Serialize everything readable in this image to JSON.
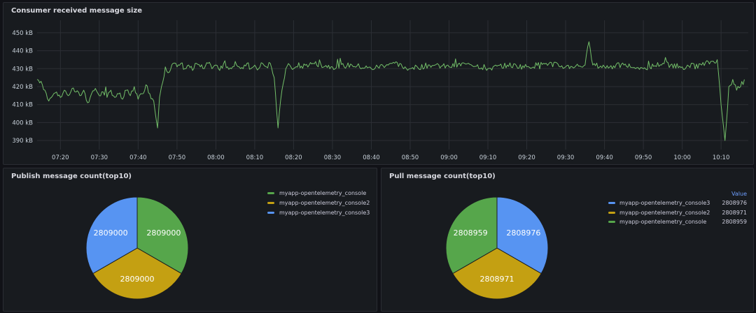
{
  "panels": {
    "line": {
      "title": "Consumer received message size",
      "chart_data": {
        "type": "line",
        "title": "Consumer received message size",
        "y_unit": "kB",
        "ylim": [
          385,
          455
        ],
        "yticks": [
          390,
          400,
          410,
          420,
          430,
          440,
          450
        ],
        "ytick_labels": [
          "390 kB",
          "400 kB",
          "410 kB",
          "420 kB",
          "430 kB",
          "440 kB",
          "450 kB"
        ],
        "xlim": [
          "07:14",
          "10:17"
        ],
        "xticks": [
          "07:20",
          "07:30",
          "07:40",
          "07:50",
          "08:00",
          "08:10",
          "08:20",
          "08:30",
          "08:40",
          "08:50",
          "09:00",
          "09:10",
          "09:20",
          "09:30",
          "09:40",
          "09:50",
          "10:00",
          "10:10"
        ],
        "grid": true,
        "series": [
          {
            "color": "#73bf69",
            "points": [
              [
                "07:14",
                424
              ],
              [
                "07:15",
                423
              ],
              [
                "07:16",
                418
              ],
              [
                "07:17",
                412
              ],
              [
                "07:18",
                415
              ],
              [
                "07:19",
                417
              ],
              [
                "07:20",
                414
              ],
              [
                "07:21",
                418
              ],
              [
                "07:22",
                415
              ],
              [
                "07:23",
                419
              ],
              [
                "07:24",
                417
              ],
              [
                "07:25",
                415
              ],
              [
                "07:26",
                418
              ],
              [
                "07:27",
                411
              ],
              [
                "07:28",
                416
              ],
              [
                "07:29",
                419
              ],
              [
                "07:30",
                415
              ],
              [
                "07:31",
                417
              ],
              [
                "07:32",
                414
              ],
              [
                "07:33",
                418
              ],
              [
                "07:34",
                414
              ],
              [
                "07:35",
                416
              ],
              [
                "07:36",
                413
              ],
              [
                "07:37",
                418
              ],
              [
                "07:38",
                415
              ],
              [
                "07:39",
                420
              ],
              [
                "07:40",
                413
              ],
              [
                "07:41",
                416
              ],
              [
                "07:42",
                421
              ],
              [
                "07:43",
                416
              ],
              [
                "07:44",
                412
              ],
              [
                "07:45",
                397
              ],
              [
                "07:45.5",
                414
              ],
              [
                "07:46",
                420
              ],
              [
                "07:47",
                431
              ],
              [
                "07:48",
                428
              ],
              [
                "07:49",
                433
              ],
              [
                "07:50",
                431
              ],
              [
                "07:51",
                433
              ],
              [
                "07:52",
                430
              ],
              [
                "07:53",
                432
              ],
              [
                "07:54",
                429
              ],
              [
                "07:55",
                433
              ],
              [
                "07:56",
                431
              ],
              [
                "07:57",
                430
              ],
              [
                "07:58",
                433
              ],
              [
                "07:59",
                430
              ],
              [
                "08:00",
                432
              ],
              [
                "08:01",
                429
              ],
              [
                "08:02",
                433
              ],
              [
                "08:03",
                431
              ],
              [
                "08:04",
                430
              ],
              [
                "08:05",
                434
              ],
              [
                "08:06",
                431
              ],
              [
                "08:07",
                430
              ],
              [
                "08:08",
                433
              ],
              [
                "08:09",
                430
              ],
              [
                "08:10",
                432
              ],
              [
                "08:11",
                430
              ],
              [
                "08:12",
                433
              ],
              [
                "08:13",
                431
              ],
              [
                "08:14",
                433
              ],
              [
                "08:15",
                425
              ],
              [
                "08:16",
                397
              ],
              [
                "08:17",
                418
              ],
              [
                "08:18",
                430
              ],
              [
                "08:19",
                432
              ],
              [
                "08:20",
                430
              ],
              [
                "08:25",
                433
              ],
              [
                "08:30",
                431
              ],
              [
                "08:35",
                432
              ],
              [
                "08:40",
                430
              ],
              [
                "08:45",
                433
              ],
              [
                "08:50",
                430
              ],
              [
                "08:55",
                432
              ],
              [
                "09:00",
                431
              ],
              [
                "09:05",
                433
              ],
              [
                "09:10",
                430
              ],
              [
                "09:15",
                432
              ],
              [
                "09:20",
                431
              ],
              [
                "09:25",
                433
              ],
              [
                "09:30",
                431
              ],
              [
                "09:35",
                432
              ],
              [
                "09:36",
                445
              ],
              [
                "09:37",
                432
              ],
              [
                "09:40",
                431
              ],
              [
                "09:45",
                432
              ],
              [
                "09:50",
                430
              ],
              [
                "09:55",
                433
              ],
              [
                "10:00",
                431
              ],
              [
                "10:05",
                432
              ],
              [
                "10:09",
                435
              ],
              [
                "10:10",
                410
              ],
              [
                "10:11",
                390
              ],
              [
                "10:12",
                420
              ],
              [
                "10:13",
                424
              ],
              [
                "10:14",
                418
              ],
              [
                "10:15",
                420
              ],
              [
                "10:16",
                424
              ]
            ]
          }
        ]
      }
    },
    "publish": {
      "title": "Publish message count(top10)",
      "chart_data": {
        "type": "pie",
        "legend_position": "top-right",
        "series": [
          {
            "name": "myapp-opentelemetry_console",
            "value": 2809000,
            "label": "2809000",
            "color": "#56a64b"
          },
          {
            "name": "myapp-opentelemetry_console2",
            "value": 2809000,
            "label": "2809000",
            "color": "#c4a012"
          },
          {
            "name": "myapp-opentelemetry_console3",
            "value": 2809000,
            "label": "2809000",
            "color": "#5794f2"
          }
        ]
      }
    },
    "pull": {
      "title": "Pull message count(top10)",
      "legend_header": "Value",
      "chart_data": {
        "type": "pie",
        "legend_position": "right",
        "series": [
          {
            "name": "myapp-opentelemetry_console3",
            "value": 2808976,
            "label": "2808976",
            "color": "#5794f2"
          },
          {
            "name": "myapp-opentelemetry_console2",
            "value": 2808971,
            "label": "2808971",
            "color": "#c4a012"
          },
          {
            "name": "myapp-opentelemetry_console",
            "value": 2808959,
            "label": "2808959",
            "color": "#56a64b"
          }
        ]
      }
    }
  }
}
